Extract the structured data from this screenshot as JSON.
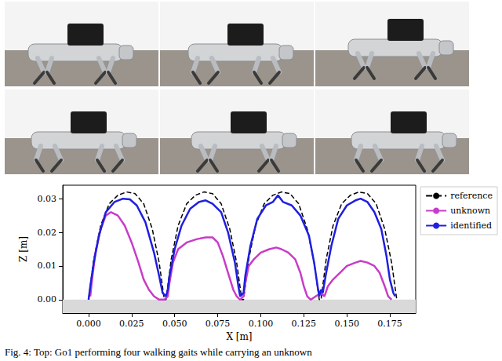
{
  "caption": "Fig. 4: Top: Go1 performing four walking gaits while carrying an unknown",
  "chart_data": {
    "type": "line",
    "x_label": "X [m]",
    "y_label": "Z [m]",
    "xlim": [
      -0.015,
      0.19
    ],
    "xticks": [
      {
        "value": 0,
        "label": "0.000"
      },
      {
        "value": 0.025,
        "label": "0.025"
      },
      {
        "value": 0.05,
        "label": "0.050"
      },
      {
        "value": 0.075,
        "label": "0.075"
      },
      {
        "value": 0.1,
        "label": "0.100"
      },
      {
        "value": 0.125,
        "label": "0.125"
      },
      {
        "value": 0.15,
        "label": "0.150"
      },
      {
        "value": 0.175,
        "label": "0.175"
      }
    ],
    "ylim": [
      -0.004,
      0.034
    ],
    "yticks": [
      {
        "value": 0,
        "label": "0.00"
      },
      {
        "value": 0.01,
        "label": "0.01"
      },
      {
        "value": 0.02,
        "label": "0.02"
      },
      {
        "value": 0.03,
        "label": "0.03"
      }
    ],
    "ground": 0,
    "grid": false,
    "legend": "right",
    "series": [
      {
        "name": "reference",
        "color": "#000000",
        "line_style": "dashed",
        "x": [
          0,
          0.003,
          0.007,
          0.012,
          0.017,
          0.022,
          0.027,
          0.032,
          0.037,
          0.041,
          0.044,
          0.045,
          0.048,
          0.052,
          0.057,
          0.062,
          0.067,
          0.072,
          0.077,
          0.082,
          0.086,
          0.089,
          0.09,
          0.093,
          0.097,
          0.102,
          0.107,
          0.112,
          0.117,
          0.122,
          0.127,
          0.131,
          0.134,
          0.135,
          0.138,
          0.142,
          0.147,
          0.152,
          0.157,
          0.162,
          0.167,
          0.172,
          0.176,
          0.179
        ],
        "values": [
          0,
          0.012,
          0.022,
          0.0285,
          0.031,
          0.032,
          0.0315,
          0.0285,
          0.021,
          0.011,
          0,
          0,
          0.012,
          0.022,
          0.0285,
          0.031,
          0.032,
          0.0315,
          0.0285,
          0.021,
          0.011,
          0,
          0,
          0.012,
          0.022,
          0.0285,
          0.031,
          0.032,
          0.0315,
          0.0285,
          0.021,
          0.011,
          0,
          0,
          0.012,
          0.022,
          0.0285,
          0.031,
          0.032,
          0.0315,
          0.0285,
          0.021,
          0.011,
          0
        ]
      },
      {
        "name": "unknown",
        "color": "#c83cc8",
        "line_style": "solid",
        "x": [
          0.001,
          0.002,
          0.004,
          0.007,
          0.01,
          0.013,
          0.017,
          0.021,
          0.025,
          0.029,
          0.032,
          0.035,
          0.038,
          0.041,
          0.044,
          0.046,
          0.047,
          0.049,
          0.052,
          0.057,
          0.063,
          0.068,
          0.072,
          0.075,
          0.078,
          0.081,
          0.084,
          0.086,
          0.088,
          0.09,
          0.091,
          0.093,
          0.096,
          0.1,
          0.105,
          0.109,
          0.112,
          0.116,
          0.12,
          0.123,
          0.125,
          0.127,
          0.129,
          0.132,
          0.135,
          0.137,
          0.139,
          0.142,
          0.146,
          0.15,
          0.155,
          0.158,
          0.162,
          0.166,
          0.169,
          0.172,
          0.174,
          0.176
        ],
        "values": [
          0.001,
          0.006,
          0.014,
          0.021,
          0.025,
          0.026,
          0.025,
          0.022,
          0.017,
          0.011,
          0.006,
          0.003,
          0.001,
          0,
          0,
          0.001,
          0.005,
          0.011,
          0.015,
          0.017,
          0.018,
          0.0185,
          0.0185,
          0.017,
          0.013,
          0.008,
          0.003,
          0.001,
          0,
          0.001,
          0.005,
          0.01,
          0.012,
          0.014,
          0.015,
          0.0155,
          0.015,
          0.014,
          0.012,
          0.008,
          0.004,
          0.001,
          0,
          0.001,
          0.002,
          0.001,
          0.004,
          0.006,
          0.008,
          0.01,
          0.011,
          0.0115,
          0.011,
          0.01,
          0.008,
          0.004,
          0.001,
          0
        ]
      },
      {
        "name": "identified",
        "color": "#1f1fe0",
        "line_style": "solid",
        "x": [
          0,
          0.001,
          0.003,
          0.006,
          0.01,
          0.015,
          0.02,
          0.024,
          0.028,
          0.033,
          0.038,
          0.041,
          0.043,
          0.045,
          0.046,
          0.047,
          0.05,
          0.054,
          0.059,
          0.064,
          0.068,
          0.072,
          0.077,
          0.081,
          0.085,
          0.087,
          0.088,
          0.09,
          0.091,
          0.094,
          0.098,
          0.103,
          0.107,
          0.11,
          0.113,
          0.118,
          0.123,
          0.128,
          0.131,
          0.133,
          0.134,
          0.135,
          0.136,
          0.138,
          0.141,
          0.145,
          0.15,
          0.155,
          0.158,
          0.162,
          0.166,
          0.17,
          0.173,
          0.175,
          0.177,
          0.178
        ],
        "values": [
          0,
          0.004,
          0.011,
          0.019,
          0.026,
          0.029,
          0.03,
          0.0298,
          0.028,
          0.023,
          0.014,
          0.007,
          0.002,
          0.001,
          0.003,
          0.007,
          0.015,
          0.022,
          0.027,
          0.029,
          0.0295,
          0.0285,
          0.026,
          0.02,
          0.011,
          0.004,
          0.001,
          0.002,
          0.007,
          0.016,
          0.024,
          0.028,
          0.029,
          0.031,
          0.029,
          0.028,
          0.025,
          0.019,
          0.011,
          0.004,
          0.001,
          0.003,
          0.002,
          0.008,
          0.016,
          0.024,
          0.028,
          0.0295,
          0.03,
          0.029,
          0.026,
          0.021,
          0.013,
          0.006,
          0.002,
          0.001
        ]
      }
    ]
  }
}
